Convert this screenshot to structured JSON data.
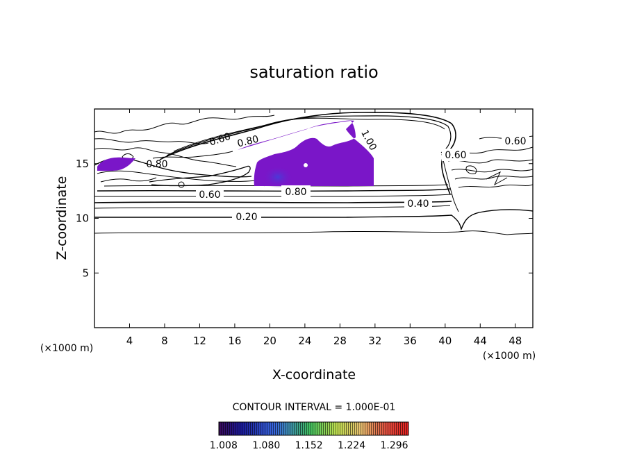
{
  "chart_data": {
    "type": "contour",
    "title": "saturation ratio",
    "xlabel": "X-coordinate",
    "ylabel": "Z-coordinate",
    "xunit": "(×1000 m)",
    "zunit": "(×1000 m)",
    "xlim": [
      0,
      50
    ],
    "ylim": [
      0,
      20
    ],
    "xticks": [
      "4",
      "8",
      "12",
      "16",
      "20",
      "24",
      "28",
      "32",
      "36",
      "40",
      "44",
      "48"
    ],
    "yticks": [
      "5",
      "10",
      "15"
    ],
    "contour_interval_text": "CONTOUR INTERVAL = 1.000E-01",
    "contour_labels": [
      "0.20",
      "0.40",
      "0.60",
      "0.80",
      "1.00"
    ],
    "colorbar_ticks": [
      "1.008",
      "1.080",
      "1.152",
      "1.224",
      "1.296"
    ],
    "colorbar_range": [
      1.0,
      1.32
    ],
    "shaded_color": "#7a16c8",
    "grid": false
  }
}
